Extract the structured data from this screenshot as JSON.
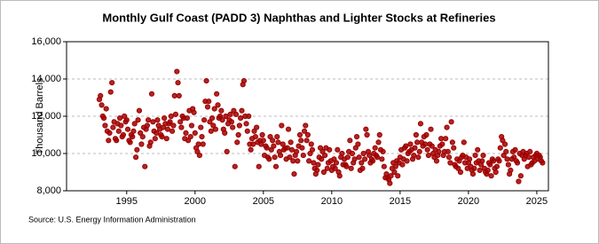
{
  "chart_data": {
    "type": "scatter",
    "title": "Monthly Gulf Coast (PADD 3) Naphthas and Lighter Stocks at Refineries",
    "ylabel": "Thousand Barrels",
    "source": "Source: U.S. Energy Information Administration",
    "color": "#a00000",
    "grid": true,
    "xlim": [
      1990.6,
      2025.85
    ],
    "xticks": [
      1995,
      2000,
      2005,
      2010,
      2015,
      2020,
      2025
    ],
    "ylim": [
      8000,
      16000
    ],
    "yticks": [
      {
        "value": 8000,
        "label": "8,000"
      },
      {
        "value": 10000,
        "label": "10,000"
      },
      {
        "value": 12000,
        "label": "12,000"
      },
      {
        "value": 14000,
        "label": "14,000"
      },
      {
        "value": 16000,
        "label": "16,000"
      }
    ],
    "x": [
      1993,
      1993.08,
      1993.17,
      1993.25,
      1993.33,
      1993.42,
      1993.5,
      1993.58,
      1993.67,
      1993.75,
      1993.83,
      1993.92,
      1994,
      1994.08,
      1994.17,
      1994.25,
      1994.33,
      1994.42,
      1994.5,
      1994.58,
      1994.67,
      1994.75,
      1994.83,
      1994.92,
      1995,
      1995.08,
      1995.17,
      1995.25,
      1995.33,
      1995.42,
      1995.5,
      1995.58,
      1995.67,
      1995.75,
      1995.83,
      1995.92,
      1996,
      1996.08,
      1996.17,
      1996.25,
      1996.33,
      1996.42,
      1996.5,
      1996.58,
      1996.67,
      1996.75,
      1996.83,
      1996.92,
      1997,
      1997.08,
      1997.17,
      1997.25,
      1997.33,
      1997.42,
      1997.5,
      1997.58,
      1997.67,
      1997.75,
      1997.83,
      1997.92,
      1998,
      1998.08,
      1998.17,
      1998.25,
      1998.33,
      1998.42,
      1998.5,
      1998.58,
      1998.67,
      1998.75,
      1998.83,
      1998.92,
      1999,
      1999.08,
      1999.17,
      1999.25,
      1999.33,
      1999.42,
      1999.5,
      1999.58,
      1999.67,
      1999.75,
      1999.83,
      1999.92,
      2000,
      2000.08,
      2000.17,
      2000.25,
      2000.33,
      2000.42,
      2000.5,
      2000.58,
      2000.67,
      2000.75,
      2000.83,
      2000.92,
      2001,
      2001.08,
      2001.17,
      2001.25,
      2001.33,
      2001.42,
      2001.5,
      2001.58,
      2001.67,
      2001.75,
      2001.83,
      2001.92,
      2002,
      2002.08,
      2002.17,
      2002.25,
      2002.33,
      2002.42,
      2002.5,
      2002.58,
      2002.67,
      2002.75,
      2002.83,
      2002.92,
      2003,
      2003.08,
      2003.17,
      2003.25,
      2003.33,
      2003.42,
      2003.5,
      2003.58,
      2003.67,
      2003.75,
      2003.83,
      2003.92,
      2004,
      2004.08,
      2004.17,
      2004.25,
      2004.33,
      2004.42,
      2004.5,
      2004.58,
      2004.67,
      2004.75,
      2004.83,
      2004.92,
      2005,
      2005.08,
      2005.17,
      2005.25,
      2005.33,
      2005.42,
      2005.5,
      2005.58,
      2005.67,
      2005.75,
      2005.83,
      2005.92,
      2006,
      2006.08,
      2006.17,
      2006.25,
      2006.33,
      2006.42,
      2006.5,
      2006.58,
      2006.67,
      2006.75,
      2006.83,
      2006.92,
      2007,
      2007.08,
      2007.17,
      2007.25,
      2007.33,
      2007.42,
      2007.5,
      2007.58,
      2007.67,
      2007.75,
      2007.83,
      2007.92,
      2008,
      2008.08,
      2008.17,
      2008.25,
      2008.33,
      2008.42,
      2008.5,
      2008.58,
      2008.67,
      2008.75,
      2008.83,
      2008.92,
      2009,
      2009.08,
      2009.17,
      2009.25,
      2009.33,
      2009.42,
      2009.5,
      2009.58,
      2009.67,
      2009.75,
      2009.83,
      2009.92,
      2010,
      2010.08,
      2010.17,
      2010.25,
      2010.33,
      2010.42,
      2010.5,
      2010.58,
      2010.67,
      2010.75,
      2010.83,
      2010.92,
      2011,
      2011.08,
      2011.17,
      2011.25,
      2011.33,
      2011.42,
      2011.5,
      2011.58,
      2011.67,
      2011.75,
      2011.83,
      2011.92,
      2012,
      2012.08,
      2012.17,
      2012.25,
      2012.33,
      2012.42,
      2012.5,
      2012.58,
      2012.67,
      2012.75,
      2012.83,
      2012.92,
      2013,
      2013.08,
      2013.17,
      2013.25,
      2013.33,
      2013.42,
      2013.5,
      2013.58,
      2013.67,
      2013.75,
      2013.83,
      2013.92,
      2014,
      2014.08,
      2014.17,
      2014.25,
      2014.33,
      2014.42,
      2014.5,
      2014.58,
      2014.67,
      2014.75,
      2014.83,
      2014.92,
      2015,
      2015.08,
      2015.17,
      2015.25,
      2015.33,
      2015.42,
      2015.5,
      2015.58,
      2015.67,
      2015.75,
      2015.83,
      2015.92,
      2016,
      2016.08,
      2016.17,
      2016.25,
      2016.33,
      2016.42,
      2016.5,
      2016.58,
      2016.67,
      2016.75,
      2016.83,
      2016.92,
      2017,
      2017.08,
      2017.17,
      2017.25,
      2017.33,
      2017.42,
      2017.5,
      2017.58,
      2017.67,
      2017.75,
      2017.83,
      2017.92,
      2018,
      2018.08,
      2018.17,
      2018.25,
      2018.33,
      2018.42,
      2018.5,
      2018.58,
      2018.67,
      2018.75,
      2018.83,
      2018.92,
      2019,
      2019.08,
      2019.17,
      2019.25,
      2019.33,
      2019.42,
      2019.5,
      2019.58,
      2019.67,
      2019.75,
      2019.83,
      2019.92,
      2020,
      2020.08,
      2020.17,
      2020.25,
      2020.33,
      2020.42,
      2020.5,
      2020.58,
      2020.67,
      2020.75,
      2020.83,
      2020.92,
      2021,
      2021.08,
      2021.17,
      2021.25,
      2021.33,
      2021.42,
      2021.5,
      2021.58,
      2021.67,
      2021.75,
      2021.83,
      2021.92,
      2022,
      2022.08,
      2022.17,
      2022.25,
      2022.33,
      2022.42,
      2022.5,
      2022.58,
      2022.67,
      2022.75,
      2022.83,
      2022.92,
      2023,
      2023.08,
      2023.17,
      2023.25,
      2023.33,
      2023.42,
      2023.5,
      2023.58,
      2023.67,
      2023.75,
      2023.83,
      2023.92,
      2024,
      2024.08,
      2024.17,
      2024.25,
      2024.33,
      2024.42,
      2024.5,
      2024.58,
      2024.67,
      2024.75,
      2024.83,
      2024.92,
      2025,
      2025.08,
      2025.17,
      2025.25,
      2025.33,
      2025.42
    ],
    "values": [
      12900,
      13100,
      12600,
      12000,
      11900,
      11500,
      12400,
      11200,
      10700,
      11100,
      13300,
      13800,
      11400,
      11700,
      10800,
      10700,
      11600,
      11200,
      11900,
      11500,
      10900,
      11000,
      12000,
      11700,
      11800,
      11300,
      10700,
      10600,
      11000,
      10900,
      11200,
      11600,
      9800,
      10200,
      11800,
      12300,
      11100,
      10500,
      10900,
      11400,
      9300,
      11300,
      11500,
      11800,
      10400,
      10600,
      13200,
      11700,
      11200,
      10800,
      11100,
      11800,
      11500,
      11300,
      11000,
      10900,
      11400,
      11900,
      11600,
      10800,
      11300,
      11600,
      11700,
      12000,
      11200,
      11500,
      13100,
      12100,
      14400,
      13800,
      13100,
      11700,
      11400,
      12000,
      11900,
      10800,
      11100,
      11900,
      10700,
      12300,
      10900,
      11500,
      12400,
      12200,
      11100,
      10300,
      10100,
      10500,
      9900,
      11400,
      10900,
      10500,
      11800,
      12800,
      13900,
      12500,
      12800,
      11700,
      11200,
      11900,
      11500,
      12400,
      11300,
      13200,
      12600,
      11900,
      12000,
      12300,
      11800,
      11300,
      11100,
      12000,
      10100,
      11600,
      11800,
      12100,
      11700,
      11400,
      12300,
      9300,
      12100,
      10600,
      11000,
      11500,
      11900,
      12300,
      13700,
      13900,
      12000,
      11600,
      11200,
      12000,
      10500,
      10200,
      10800,
      10500,
      11200,
      10900,
      11400,
      10600,
      9300,
      10700,
      10500,
      11000,
      10700,
      9900,
      10400,
      10300,
      9800,
      9700,
      10900,
      10200,
      10700,
      10400,
      9800,
      9300,
      10900,
      10600,
      10100,
      9900,
      11500,
      10500,
      10200,
      10300,
      9700,
      10300,
      11300,
      9800,
      10600,
      10200,
      9600,
      8900,
      9900,
      10100,
      9600,
      10400,
      11000,
      10700,
      10300,
      9900,
      11200,
      11500,
      10700,
      11000,
      9600,
      10000,
      10500,
      10200,
      9500,
      9200,
      8900,
      9100,
      9400,
      9800,
      10300,
      9700,
      10100,
      9000,
      9900,
      10300,
      9200,
      9500,
      10200,
      9600,
      9100,
      9300,
      9700,
      9200,
      9500,
      10200,
      9000,
      8800,
      9800,
      10000,
      9400,
      9700,
      9400,
      9300,
      9800,
      10100,
      10700,
      9200,
      10000,
      9500,
      9700,
      10300,
      10900,
      10500,
      9800,
      9100,
      9500,
      9200,
      10000,
      9700,
      11300,
      11000,
      10100,
      9900,
      9500,
      9700,
      9600,
      10000,
      10300,
      9900,
      9800,
      10600,
      11000,
      10200,
      9700,
      10100,
      9300,
      8700,
      8900,
      8700,
      8600,
      8400,
      8800,
      9200,
      9500,
      9000,
      9300,
      9600,
      8800,
      9500,
      9800,
      10200,
      9400,
      9700,
      10300,
      10400,
      9600,
      10000,
      10100,
      10500,
      10200,
      9700,
      9900,
      10300,
      11000,
      10600,
      9800,
      10100,
      11600,
      10600,
      10400,
      10900,
      10500,
      11000,
      10200,
      9900,
      10500,
      11300,
      10400,
      10000,
      9800,
      10200,
      9600,
      9900,
      10100,
      10400,
      10800,
      10500,
      9900,
      10100,
      10800,
      11400,
      10100,
      9800,
      9500,
      11700,
      10600,
      10300,
      9400,
      9300,
      9700,
      9200,
      9600,
      9000,
      9800,
      9900,
      10600,
      9500,
      9800,
      9200,
      9500,
      9700,
      9300,
      9100,
      8900,
      9200,
      9900,
      9500,
      10200,
      9600,
      9100,
      9400,
      9600,
      9900,
      9200,
      9000,
      8900,
      9100,
      9500,
      9400,
      8800,
      9700,
      9600,
      9200,
      9000,
      9300,
      9700,
      9600,
      10300,
      10900,
      10700,
      9900,
      10500,
      10100,
      9700,
      9400,
      8900,
      9100,
      9700,
      10100,
      9800,
      10200,
      9600,
      9500,
      8500,
      10000,
      8800,
      9900,
      10100,
      9700,
      9900,
      10000,
      9300,
      9800,
      10100,
      9400,
      9500,
      9800,
      9600,
      9900,
      10000,
      9700,
      9900,
      9800,
      9600,
      9500
    ]
  }
}
